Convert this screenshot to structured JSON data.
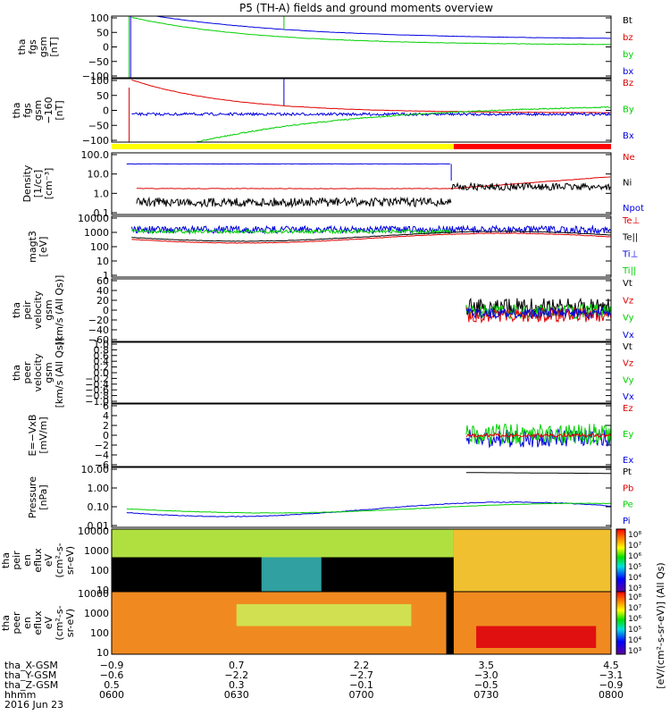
{
  "title": "P5 (TH-A) fields and ground moments overview",
  "date_label": "2016 Jun 23",
  "colors": {
    "black": "#000000",
    "red": "#e00000",
    "green": "#00d000",
    "blue": "#0000e0",
    "yellow": "#ffff00",
    "strip_red": "#ff0000"
  },
  "panels": [
    {
      "ylabel": [
        "tha",
        "fgs",
        "gsm",
        "[nT]"
      ],
      "yticks": [
        "100",
        "50",
        "0",
        "−50",
        "−100"
      ],
      "legend": [
        {
          "text": "Bt",
          "color": "black"
        },
        {
          "text": "bz",
          "color": "red"
        },
        {
          "text": "by",
          "color": "green"
        },
        {
          "text": "bx",
          "color": "blue"
        }
      ]
    },
    {
      "ylabel": [
        "tha",
        "fgs",
        "gsm",
        "−160",
        "[nT]"
      ],
      "yticks": [
        "100",
        "50",
        "0",
        "−50",
        "−100"
      ],
      "legend": [
        {
          "text": "Bz",
          "color": "red"
        },
        {
          "text": "By",
          "color": "green"
        },
        {
          "text": "Bx",
          "color": "blue"
        }
      ]
    },
    {
      "ylabel": [
        "Density",
        "[1/cc]",
        "[cm⁻³]"
      ],
      "yticks": [
        "100.0",
        "10.0",
        "1.0",
        "0.1"
      ],
      "legend": [
        {
          "text": "Ne",
          "color": "red"
        },
        {
          "text": "Ni",
          "color": "black"
        },
        {
          "text": "Npot",
          "color": "blue"
        }
      ]
    },
    {
      "ylabel": [
        "magt3",
        "[eV]"
      ],
      "yticks": [
        "10000",
        "1000",
        "100",
        "10",
        "1"
      ],
      "legend": [
        {
          "text": "Te⊥",
          "color": "red"
        },
        {
          "text": "Te||",
          "color": "black"
        },
        {
          "text": "Ti⊥",
          "color": "blue"
        },
        {
          "text": "Ti||",
          "color": "green"
        }
      ]
    },
    {
      "ylabel": [
        "tha",
        "peir",
        "velocity",
        "gsm",
        "[km/s (All Qs)]"
      ],
      "yticks": [
        "60",
        "40",
        "20",
        "0",
        "−20",
        "−40",
        "−60"
      ],
      "legend": [
        {
          "text": "Vt",
          "color": "black"
        },
        {
          "text": "Vz",
          "color": "red"
        },
        {
          "text": "Vy",
          "color": "green"
        },
        {
          "text": "Vx",
          "color": "blue"
        }
      ]
    },
    {
      "ylabel": [
        "tha",
        "peer",
        "velocity",
        "gsm",
        "[km/s (All Qs)]"
      ],
      "yticks": [
        "1.0",
        "0.8",
        "0.6",
        "0.4",
        "0.2",
        "0.0",
        "−0.2",
        "−0.4",
        "−0.6",
        "−0.8",
        "−1.0"
      ],
      "legend": [
        {
          "text": "Vt",
          "color": "black"
        },
        {
          "text": "Vz",
          "color": "red"
        },
        {
          "text": "Vy",
          "color": "green"
        },
        {
          "text": "Vx",
          "color": "blue"
        }
      ]
    },
    {
      "ylabel": [
        "E=−VxB",
        "[mV/m]"
      ],
      "yticks": [
        "6",
        "4",
        "2",
        "0",
        "−2",
        "−4",
        "−6"
      ],
      "legend": [
        {
          "text": "Ez",
          "color": "red"
        },
        {
          "text": "Ey",
          "color": "green"
        },
        {
          "text": "Ex",
          "color": "blue"
        }
      ]
    },
    {
      "ylabel": [
        "Pressure",
        "[nPa]"
      ],
      "yticks": [
        "10.00",
        "1.00",
        "0.10",
        "0.01"
      ],
      "legend": [
        {
          "text": "Pt",
          "color": "black"
        },
        {
          "text": "Pb",
          "color": "red"
        },
        {
          "text": "Pe",
          "color": "green"
        },
        {
          "text": "Pi",
          "color": "blue"
        }
      ]
    },
    {
      "ylabel": [
        "tha",
        "peir",
        "en",
        "eflux",
        "eV",
        "(cm²-s-",
        "sr-eV)"
      ],
      "yticks": [
        "10000",
        "1000",
        "100",
        "10"
      ],
      "legend": []
    },
    {
      "ylabel": [
        "tha",
        "peer",
        "en",
        "eflux",
        "eV",
        "(cm²-s-",
        "sr-eV)"
      ],
      "yticks": [
        "10000",
        "1000",
        "100",
        "10"
      ],
      "legend": []
    }
  ],
  "colorbar": {
    "ticks": [
      "10⁸",
      "10⁷",
      "10⁶",
      "10⁵",
      "10⁴",
      "10³"
    ],
    "label": "[eV/(cm²-s-sr-eV)] (All Qs)"
  },
  "footer": {
    "rows": [
      {
        "label": "tha_X-GSM",
        "values": [
          "−0.9",
          "0.7",
          "2.2",
          "3.5",
          "4.5"
        ]
      },
      {
        "label": "tha_Y-GSM",
        "values": [
          "−0.6",
          "−2.2",
          "−2.7",
          "−3.0",
          "−3.1"
        ]
      },
      {
        "label": "tha_Z-GSM",
        "values": [
          "0.5",
          "0.3",
          "−0.1",
          "−0.5",
          "−0.9"
        ]
      },
      {
        "label": "hhmm",
        "values": [
          "0600",
          "0630",
          "0700",
          "0730",
          "0800"
        ]
      }
    ]
  },
  "chart_data": {
    "type": "line",
    "x_label": "hhmm",
    "x": [
      "0600",
      "0630",
      "0700",
      "0730",
      "0800"
    ],
    "ylim_panels": [
      [
        -100,
        100
      ],
      [
        -100,
        100
      ],
      [
        0.1,
        100
      ],
      [
        1,
        10000
      ],
      [
        -60,
        60
      ],
      [
        -1,
        1
      ],
      [
        -6,
        6
      ],
      [
        0.01,
        10
      ],
      [
        10,
        10000
      ],
      [
        10,
        10000
      ]
    ],
    "series_samples": {
      "Bt": {
        "x": [
          "0610",
          "0630",
          "0700",
          "0730",
          "0800"
        ],
        "y": [
          100,
          80,
          50,
          35,
          25
        ]
      },
      "Bz": {
        "x": [
          "0602",
          "0615",
          "0630",
          "0700",
          "0800"
        ],
        "y": [
          100,
          80,
          50,
          25,
          20
        ]
      },
      "By": {
        "x": [
          "0610",
          "0630",
          "0700",
          "0730",
          "0800"
        ],
        "y": [
          -100,
          -60,
          -30,
          -10,
          0
        ]
      },
      "Bx": {
        "x": [
          "0602",
          "0610",
          "0630",
          "0700",
          "0800"
        ],
        "y": [
          -100,
          5,
          5,
          5,
          5
        ]
      },
      "Npot": {
        "x": [
          "0610",
          "0700",
          "0720",
          "0800"
        ],
        "y": [
          20,
          15,
          12,
          null
        ]
      },
      "Ne": {
        "x": [
          "0615",
          "0700",
          "0720",
          "0740",
          "0800"
        ],
        "y": [
          1.3,
          1.0,
          0.6,
          3,
          2
        ]
      },
      "Ni": {
        "x": [
          "0605",
          "0630",
          "0700",
          "0720",
          "0800"
        ],
        "y": [
          0.4,
          0.15,
          0.15,
          0.2,
          1.5
        ]
      }
    }
  }
}
